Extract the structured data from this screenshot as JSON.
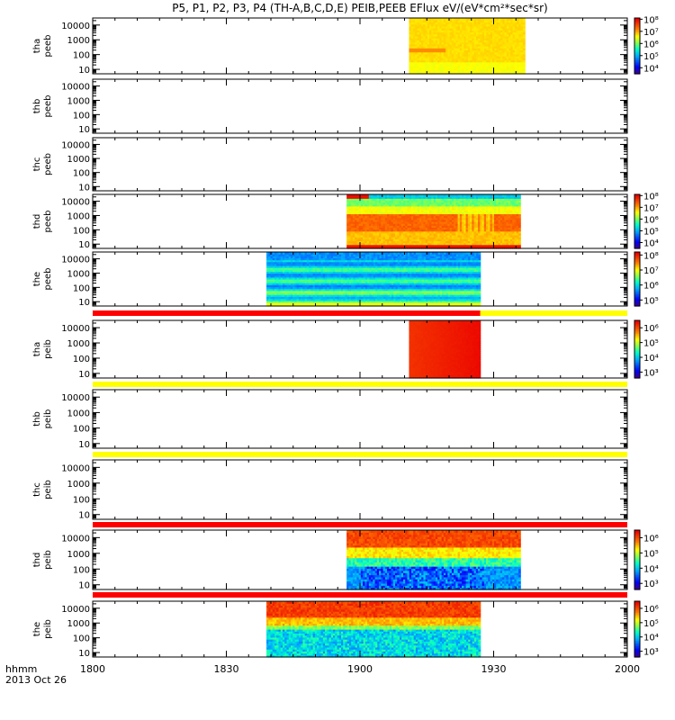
{
  "title": "P5, P1, P2, P3, P4 (TH-A,B,C,D,E) PEIB,PEEB EFlux eV/(eV*cm²*sec*sr)",
  "time_axis": {
    "label_line1": "hhmm",
    "label_line2": "2013 Oct 26",
    "ticks": [
      "1800",
      "1830",
      "1900",
      "1930",
      "2000"
    ],
    "range_min": [
      0,
      120
    ]
  },
  "chart_data": {
    "type": "heatmap",
    "title": "P5, P1, P2, P3, P4 (TH-A,B,C,D,E) PEIB,PEEB EFlux eV/(eV*cm²*sec*sr)",
    "x_unit": "minutes after 1800 UT",
    "y_scale": "log",
    "ylim": [
      5,
      30000
    ],
    "y_ticks": [
      "10000",
      "1000",
      "100",
      "10"
    ],
    "panels": [
      {
        "label": [
          "tha",
          "peeb"
        ],
        "data_start": 71,
        "data_end": 97,
        "cbar_ticks": [
          "10⁸",
          "10⁷",
          "10⁶",
          "10⁵",
          "10⁴"
        ],
        "cbar_range": [
          3.5,
          8.1
        ],
        "band_above": null,
        "pattern": "tha_peeb"
      },
      {
        "label": [
          "thb",
          "peeb"
        ],
        "data_start": null,
        "data_end": null,
        "cbar_ticks": [],
        "cbar_range": null,
        "band_above": null,
        "pattern": "empty"
      },
      {
        "label": [
          "thc",
          "peeb"
        ],
        "data_start": null,
        "data_end": null,
        "cbar_ticks": [],
        "cbar_range": null,
        "band_above": null,
        "pattern": "empty"
      },
      {
        "label": [
          "thd",
          "peeb"
        ],
        "data_start": 57,
        "data_end": 96,
        "cbar_ticks": [
          "10⁸",
          "10⁷",
          "10⁶",
          "10⁵",
          "10⁴"
        ],
        "cbar_range": [
          3.5,
          8.1
        ],
        "band_above": null,
        "pattern": "thd_peeb"
      },
      {
        "label": [
          "the",
          "peeb"
        ],
        "data_start": 39,
        "data_end": 87,
        "cbar_ticks": [
          "10⁸",
          "10⁷",
          "10⁶",
          "10⁵"
        ],
        "cbar_range": [
          4.6,
          8.2
        ],
        "band_above": null,
        "pattern": "the_peeb"
      },
      {
        "label": [
          "tha",
          "peib"
        ],
        "data_start": 71,
        "data_end": 87,
        "cbar_ticks": [
          "10⁶",
          "10⁵",
          "10⁴",
          "10³"
        ],
        "cbar_range": [
          2.6,
          6.5
        ],
        "band_above": {
          "color": "split",
          "split_at": 87
        },
        "pattern": "tha_peib"
      },
      {
        "label": [
          "thb",
          "peib"
        ],
        "data_start": null,
        "data_end": null,
        "cbar_ticks": [],
        "cbar_range": null,
        "band_above": {
          "color": "#ffff00"
        },
        "pattern": "empty"
      },
      {
        "label": [
          "thc",
          "peib"
        ],
        "data_start": null,
        "data_end": null,
        "cbar_ticks": [],
        "cbar_range": null,
        "band_above": {
          "color": "#ffff00"
        },
        "pattern": "empty"
      },
      {
        "label": [
          "thd",
          "peib"
        ],
        "data_start": 57,
        "data_end": 96,
        "cbar_ticks": [
          "10⁶",
          "10⁵",
          "10⁴",
          "10³"
        ],
        "cbar_range": [
          2.6,
          6.5
        ],
        "band_above": {
          "color": "#ff0000"
        },
        "pattern": "thd_peib"
      },
      {
        "label": [
          "the",
          "peib"
        ],
        "data_start": 39,
        "data_end": 87,
        "cbar_ticks": [
          "10⁶",
          "10⁵",
          "10⁴",
          "10³"
        ],
        "cbar_range": [
          2.6,
          6.5
        ],
        "band_above": {
          "color": "#ff0000"
        },
        "pattern": "the_peib"
      }
    ]
  }
}
